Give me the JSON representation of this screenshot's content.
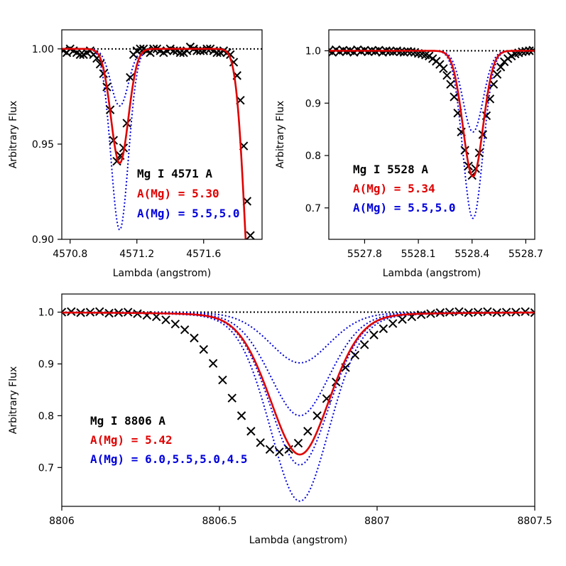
{
  "chart_data": [
    {
      "type": "line",
      "xlabel": "Lambda (angstrom)",
      "ylabel": "Arbitrary Flux",
      "xlim": [
        4570.75,
        4571.95
      ],
      "ylim": [
        0.9,
        1.01
      ],
      "xticks": [
        4570.8,
        4571.2,
        4571.6
      ],
      "xtick_labels": [
        "4570.8",
        "4571.2",
        "4571.6"
      ],
      "yticks": [
        0.9,
        0.95,
        1.0
      ],
      "ytick_labels": [
        "0.90",
        "0.95",
        "1.00"
      ],
      "continuum": 1.0,
      "legend_position": "center-right",
      "legend": {
        "line": "Mg I 4571 A",
        "best": "A(Mg) = 5.30",
        "grid": "A(Mg) = 5.5,5.0"
      },
      "colors": {
        "observed": "#000000",
        "best": "#e00000",
        "grid": "#0000dd",
        "continuum": "#000000"
      },
      "observed": {
        "x": [
          4570.76,
          4570.78,
          4570.8,
          4570.82,
          4570.84,
          4570.86,
          4570.88,
          4570.9,
          4570.92,
          4570.94,
          4570.96,
          4570.98,
          4571.0,
          4571.02,
          4571.04,
          4571.06,
          4571.08,
          4571.1,
          4571.12,
          4571.14,
          4571.16,
          4571.18,
          4571.2,
          4571.22,
          4571.24,
          4571.26,
          4571.28,
          4571.3,
          4571.32,
          4571.34,
          4571.36,
          4571.38,
          4571.4,
          4571.42,
          4571.44,
          4571.46,
          4571.48,
          4571.5,
          4571.52,
          4571.54,
          4571.56,
          4571.58,
          4571.6,
          4571.62,
          4571.64,
          4571.66,
          4571.68,
          4571.7,
          4571.72,
          4571.74,
          4571.76,
          4571.78,
          4571.8,
          4571.82,
          4571.84,
          4571.86,
          4571.88
        ],
        "y": [
          0.999,
          0.998,
          1.0,
          0.999,
          0.998,
          0.997,
          0.997,
          0.998,
          0.999,
          0.997,
          0.995,
          0.992,
          0.987,
          0.98,
          0.968,
          0.952,
          0.941,
          0.944,
          0.948,
          0.961,
          0.985,
          0.997,
          0.999,
          1.0,
          1.0,
          0.999,
          0.998,
          1.0,
          1.0,
          0.999,
          0.998,
          0.999,
          1.0,
          0.999,
          0.999,
          0.998,
          0.998,
          0.999,
          1.001,
          1.0,
          0.999,
          0.999,
          0.999,
          1.0,
          1.0,
          0.999,
          0.998,
          0.998,
          0.999,
          0.998,
          0.997,
          0.993,
          0.986,
          0.973,
          0.949,
          0.92,
          0.902
        ]
      },
      "best_fit": {
        "abundance": 5.3
      },
      "grid_models": [
        {
          "abundance": 5.5
        },
        {
          "abundance": 5.0
        }
      ]
    },
    {
      "type": "line",
      "xlabel": "Lambda (angstrom)",
      "ylabel": "Arbitrary Flux",
      "xlim": [
        5527.6,
        5528.75
      ],
      "ylim": [
        0.64,
        1.04
      ],
      "xticks": [
        5527.8,
        5528.1,
        5528.4,
        5528.7
      ],
      "xtick_labels": [
        "5527.8",
        "5528.1",
        "5528.4",
        "5528.7"
      ],
      "yticks": [
        0.7,
        0.8,
        0.9,
        1.0
      ],
      "ytick_labels": [
        "0.7",
        "0.8",
        "0.9",
        "1.0"
      ],
      "continuum": 1.0,
      "legend_position": "bottom-left",
      "legend": {
        "line": "Mg I 5528 A",
        "best": "A(Mg) = 5.34",
        "grid": "A(Mg) = 5.5,5.0"
      },
      "colors": {
        "observed": "#000000",
        "best": "#e00000",
        "grid": "#0000dd",
        "continuum": "#000000"
      },
      "observed": {
        "x": [
          5527.6,
          5527.62,
          5527.64,
          5527.66,
          5527.68,
          5527.7,
          5527.72,
          5527.74,
          5527.76,
          5527.78,
          5527.8,
          5527.82,
          5527.84,
          5527.86,
          5527.88,
          5527.9,
          5527.92,
          5527.94,
          5527.96,
          5527.98,
          5528.0,
          5528.02,
          5528.04,
          5528.06,
          5528.08,
          5528.1,
          5528.12,
          5528.14,
          5528.16,
          5528.18,
          5528.2,
          5528.22,
          5528.24,
          5528.26,
          5528.28,
          5528.3,
          5528.32,
          5528.34,
          5528.36,
          5528.38,
          5528.4,
          5528.42,
          5528.44,
          5528.46,
          5528.48,
          5528.5,
          5528.52,
          5528.54,
          5528.56,
          5528.58,
          5528.6,
          5528.62,
          5528.64,
          5528.66,
          5528.68,
          5528.7,
          5528.72,
          5528.74
        ],
        "y": [
          1.0,
          0.997,
          1.002,
          0.998,
          1.001,
          0.999,
          1.0,
          0.997,
          1.002,
          0.999,
          1.001,
          0.998,
          1.0,
          0.999,
          1.001,
          0.997,
          1.0,
          0.999,
          0.998,
          1.0,
          0.998,
          0.997,
          0.999,
          0.998,
          0.997,
          0.995,
          0.994,
          0.992,
          0.99,
          0.985,
          0.98,
          0.974,
          0.966,
          0.953,
          0.936,
          0.912,
          0.881,
          0.845,
          0.81,
          0.78,
          0.762,
          0.775,
          0.805,
          0.84,
          0.876,
          0.908,
          0.936,
          0.955,
          0.969,
          0.979,
          0.985,
          0.99,
          0.994,
          0.996,
          0.998,
          0.999,
          1.0,
          1.001
        ]
      },
      "best_fit": {
        "abundance": 5.34
      },
      "grid_models": [
        {
          "abundance": 5.5
        },
        {
          "abundance": 5.0
        }
      ]
    },
    {
      "type": "line",
      "xlabel": "Lambda (angstrom)",
      "ylabel": "Arbitrary Flux",
      "xlim": [
        8806.0,
        8807.5
      ],
      "ylim": [
        0.625,
        1.035
      ],
      "xticks": [
        8806.0,
        8806.5,
        8807.0,
        8807.5
      ],
      "xtick_labels": [
        "8806",
        "8806.5",
        "8807",
        "8807.5"
      ],
      "yticks": [
        0.7,
        0.8,
        0.9,
        1.0
      ],
      "ytick_labels": [
        "0.7",
        "0.8",
        "0.9",
        "1.0"
      ],
      "continuum": 1.0,
      "legend_position": "bottom-left",
      "legend": {
        "line": "Mg I 8806 A",
        "best": "A(Mg) = 5.42",
        "grid": "A(Mg) = 6.0,5.5,5.0,4.5"
      },
      "colors": {
        "observed": "#000000",
        "best": "#e00000",
        "grid": "#0000dd",
        "continuum": "#000000"
      },
      "observed": {
        "x": [
          8806.0,
          8806.03,
          8806.06,
          8806.09,
          8806.12,
          8806.15,
          8806.18,
          8806.21,
          8806.24,
          8806.27,
          8806.3,
          8806.33,
          8806.36,
          8806.39,
          8806.42,
          8806.45,
          8806.48,
          8806.51,
          8806.54,
          8806.57,
          8806.6,
          8806.63,
          8806.66,
          8806.69,
          8806.72,
          8806.75,
          8806.78,
          8806.81,
          8806.84,
          8806.87,
          8806.9,
          8806.93,
          8806.96,
          8806.99,
          8807.02,
          8807.05,
          8807.08,
          8807.11,
          8807.14,
          8807.17,
          8807.2,
          8807.23,
          8807.26,
          8807.29,
          8807.32,
          8807.35,
          8807.38,
          8807.41,
          8807.44,
          8807.47,
          8807.5
        ],
        "y": [
          1.0,
          1.001,
          0.999,
          1.0,
          1.001,
          0.998,
          0.999,
          1.0,
          0.997,
          0.994,
          0.991,
          0.985,
          0.977,
          0.966,
          0.95,
          0.928,
          0.901,
          0.869,
          0.834,
          0.8,
          0.77,
          0.748,
          0.735,
          0.73,
          0.735,
          0.747,
          0.77,
          0.8,
          0.833,
          0.865,
          0.893,
          0.917,
          0.937,
          0.956,
          0.968,
          0.978,
          0.986,
          0.991,
          0.995,
          0.997,
          0.999,
          1.0,
          1.001,
          0.999,
          1.0,
          1.001,
          0.999,
          1.0,
          1.0,
          1.001,
          0.999
        ]
      },
      "best_fit": {
        "abundance": 5.42
      },
      "grid_models": [
        {
          "abundance": 6.0
        },
        {
          "abundance": 5.5
        },
        {
          "abundance": 5.0
        },
        {
          "abundance": 4.5
        }
      ]
    }
  ]
}
